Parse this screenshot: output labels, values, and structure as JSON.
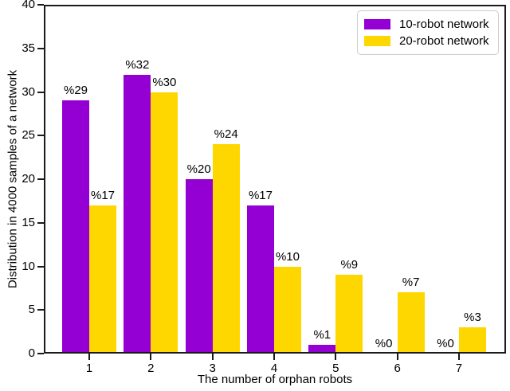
{
  "chart_data": {
    "type": "bar",
    "title": "",
    "xlabel": "The number of orphan robots",
    "ylabel": "Distribution in 4000 samples of a network",
    "categories": [
      "1",
      "2",
      "3",
      "4",
      "5",
      "6",
      "7"
    ],
    "series": [
      {
        "name": "10-robot network",
        "color": "#9400d3",
        "values": [
          29,
          32,
          20,
          17,
          1,
          0,
          0
        ],
        "labels": [
          "%29",
          "%32",
          "%20",
          "%17",
          "%1",
          "%0",
          "%0"
        ]
      },
      {
        "name": "20-robot network",
        "color": "#ffd700",
        "values": [
          17,
          30,
          24,
          10,
          9,
          7,
          3
        ],
        "labels": [
          "%17",
          "%30",
          "%24",
          "%10",
          "%9",
          "%7",
          "%3"
        ]
      }
    ],
    "ylim": [
      0,
      40
    ],
    "yticks": [
      0,
      5,
      10,
      15,
      20,
      25,
      30,
      35,
      40
    ],
    "legend_position": "upper right",
    "grid": false,
    "axis_color": "#1a1a1a",
    "background_color": "#ffffff"
  }
}
